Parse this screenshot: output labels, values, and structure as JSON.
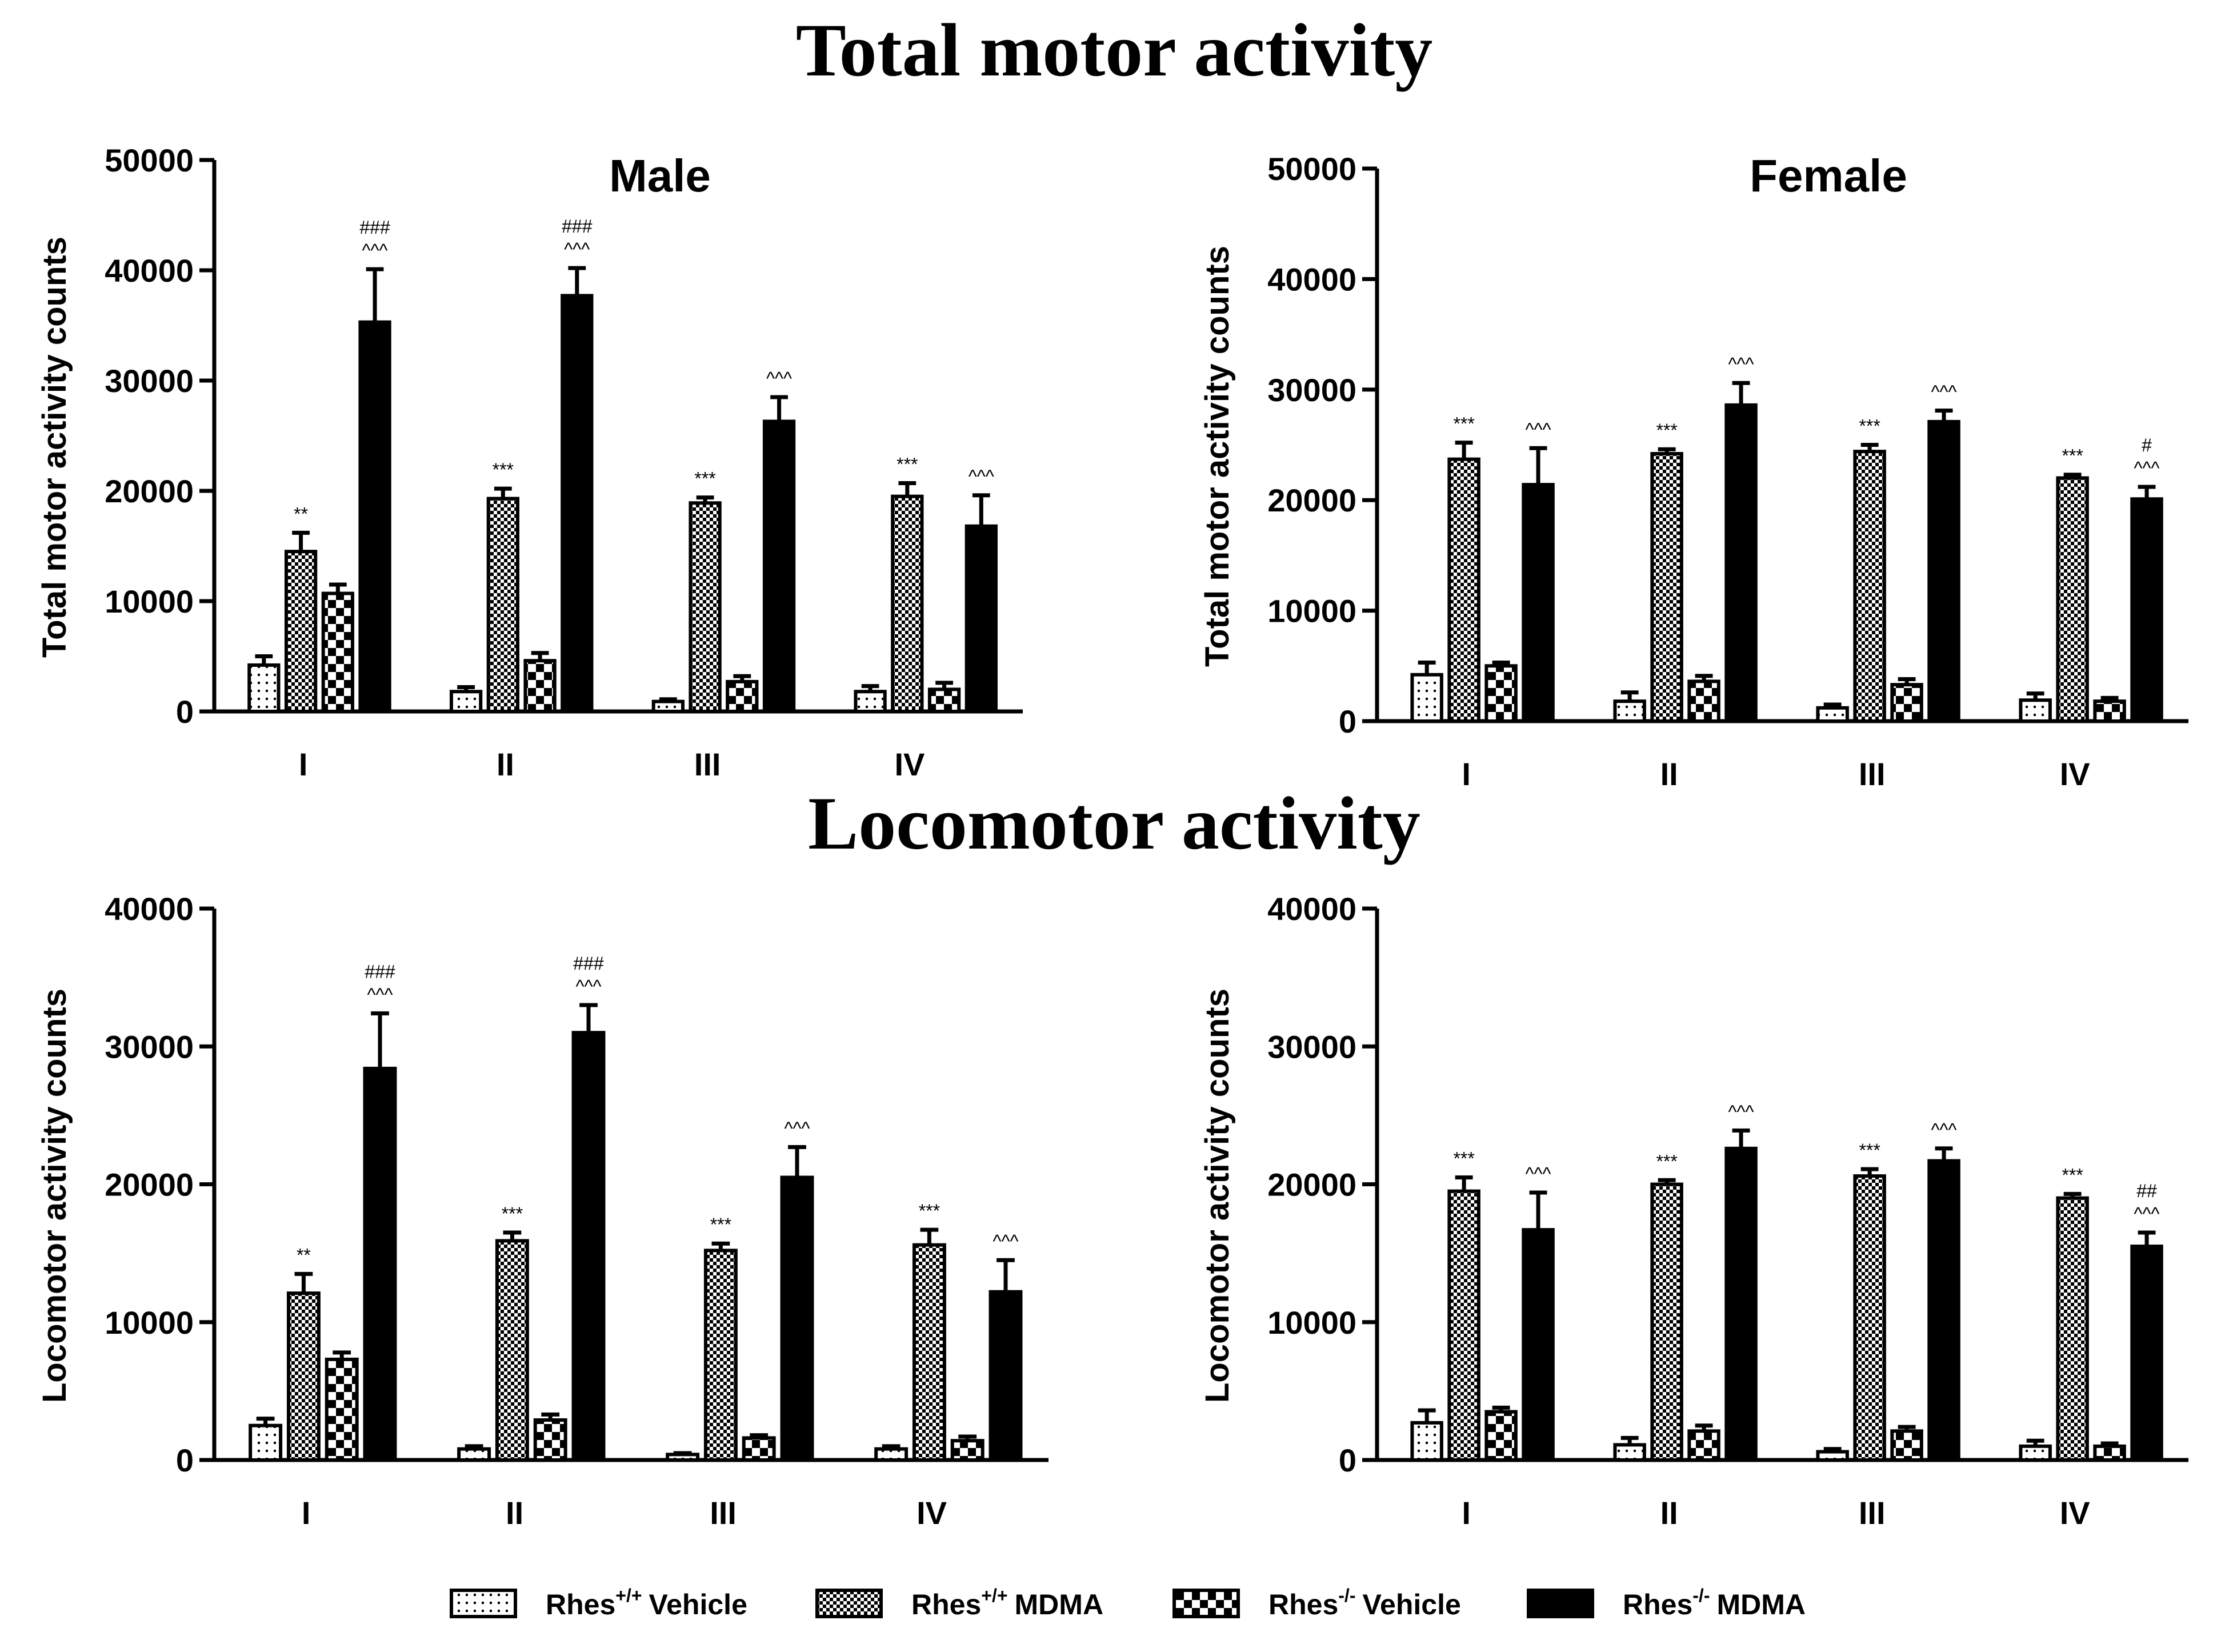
{
  "titles": {
    "total": "Total motor activity",
    "locomotor": "Locomotor activity"
  },
  "colors": {
    "ink": "#000000",
    "background": "#ffffff"
  },
  "legend": [
    {
      "base": "Rhes",
      "sup": "+/+",
      "label": "Vehicle",
      "pattern": "dots"
    },
    {
      "base": "Rhes",
      "sup": "+/+",
      "label": "MDMA",
      "pattern": "checker-fine"
    },
    {
      "base": "Rhes",
      "sup": "-/-",
      "label": "Vehicle",
      "pattern": "checker-coarse"
    },
    {
      "base": "Rhes",
      "sup": "-/-",
      "label": "MDMA",
      "pattern": "solid"
    }
  ],
  "chart_data": [
    {
      "type": "bar",
      "title": "Male",
      "ylabel": "Total motor activity counts",
      "xlabel": "",
      "ylim": [
        0,
        50000
      ],
      "yticks": [
        0,
        10000,
        20000,
        30000,
        40000,
        50000
      ],
      "categories": [
        "I",
        "II",
        "III",
        "IV"
      ],
      "series": [
        {
          "name": "Rhes+/+ Vehicle",
          "values": [
            4200,
            1800,
            900,
            1800
          ],
          "errors": [
            800,
            400,
            200,
            500
          ],
          "sig": [
            "",
            "",
            "",
            ""
          ]
        },
        {
          "name": "Rhes+/+ MDMA",
          "values": [
            14500,
            19300,
            18900,
            19500
          ],
          "errors": [
            1700,
            900,
            500,
            1200
          ],
          "sig": [
            "**",
            "***",
            "***",
            "***"
          ]
        },
        {
          "name": "Rhes-/- Vehicle",
          "values": [
            10700,
            4600,
            2700,
            2000
          ],
          "errors": [
            800,
            700,
            500,
            600
          ],
          "sig": [
            "",
            "",
            "",
            ""
          ]
        },
        {
          "name": "Rhes-/- MDMA",
          "values": [
            35300,
            37700,
            26300,
            16800
          ],
          "errors": [
            4800,
            2500,
            2200,
            2800
          ],
          "sig": [
            "^^^|###",
            "^^^|###",
            "^^^",
            "^^^"
          ]
        }
      ]
    },
    {
      "type": "bar",
      "title": "Female",
      "ylabel": "Total motor activity counts",
      "xlabel": "",
      "ylim": [
        0,
        50000
      ],
      "yticks": [
        0,
        10000,
        20000,
        30000,
        40000,
        50000
      ],
      "categories": [
        "I",
        "II",
        "III",
        "IV"
      ],
      "series": [
        {
          "name": "Rhes+/+ Vehicle",
          "values": [
            4200,
            1800,
            1200,
            1900
          ],
          "errors": [
            1100,
            800,
            300,
            600
          ],
          "sig": [
            "",
            "",
            "",
            ""
          ]
        },
        {
          "name": "Rhes+/+ MDMA",
          "values": [
            23700,
            24200,
            24400,
            22000
          ],
          "errors": [
            1500,
            400,
            600,
            300
          ],
          "sig": [
            "***",
            "***",
            "***",
            "***"
          ]
        },
        {
          "name": "Rhes-/- Vehicle",
          "values": [
            5000,
            3600,
            3300,
            1800
          ],
          "errors": [
            300,
            500,
            500,
            300
          ],
          "sig": [
            "",
            "",
            "",
            ""
          ]
        },
        {
          "name": "Rhes-/- MDMA",
          "values": [
            21400,
            28600,
            27100,
            20100
          ],
          "errors": [
            3300,
            2000,
            1000,
            1100
          ],
          "sig": [
            "^^^",
            "^^^",
            "^^^",
            "^^^|#"
          ]
        }
      ]
    },
    {
      "type": "bar",
      "title": "",
      "ylabel": "Locomotor activity counts",
      "xlabel": "",
      "ylim": [
        0,
        40000
      ],
      "yticks": [
        0,
        10000,
        20000,
        30000,
        40000
      ],
      "categories": [
        "I",
        "II",
        "III",
        "IV"
      ],
      "series": [
        {
          "name": "Rhes+/+ Vehicle",
          "values": [
            2500,
            800,
            400,
            800
          ],
          "errors": [
            500,
            200,
            100,
            200
          ],
          "sig": [
            "",
            "",
            "",
            ""
          ]
        },
        {
          "name": "Rhes+/+ MDMA",
          "values": [
            12100,
            15900,
            15200,
            15600
          ],
          "errors": [
            1400,
            600,
            500,
            1100
          ],
          "sig": [
            "**",
            "***",
            "***",
            "***"
          ]
        },
        {
          "name": "Rhes-/- Vehicle",
          "values": [
            7300,
            2900,
            1600,
            1400
          ],
          "errors": [
            500,
            400,
            200,
            300
          ],
          "sig": [
            "",
            "",
            "",
            ""
          ]
        },
        {
          "name": "Rhes-/- MDMA",
          "values": [
            28400,
            31000,
            20500,
            12200
          ],
          "errors": [
            4000,
            2000,
            2200,
            2300
          ],
          "sig": [
            "^^^|###",
            "^^^|###",
            "^^^",
            "^^^"
          ]
        }
      ]
    },
    {
      "type": "bar",
      "title": "",
      "ylabel": "Locomotor activity counts",
      "xlabel": "",
      "ylim": [
        0,
        40000
      ],
      "yticks": [
        0,
        10000,
        20000,
        30000,
        40000
      ],
      "categories": [
        "I",
        "II",
        "III",
        "IV"
      ],
      "series": [
        {
          "name": "Rhes+/+ Vehicle",
          "values": [
            2700,
            1100,
            600,
            1000
          ],
          "errors": [
            900,
            500,
            200,
            400
          ],
          "sig": [
            "",
            "",
            "",
            ""
          ]
        },
        {
          "name": "Rhes+/+ MDMA",
          "values": [
            19500,
            20000,
            20600,
            19000
          ],
          "errors": [
            1000,
            300,
            500,
            300
          ],
          "sig": [
            "***",
            "***",
            "***",
            "***"
          ]
        },
        {
          "name": "Rhes-/- Vehicle",
          "values": [
            3500,
            2100,
            2100,
            1000
          ],
          "errors": [
            300,
            400,
            300,
            200
          ],
          "sig": [
            "",
            "",
            "",
            ""
          ]
        },
        {
          "name": "Rhes-/- MDMA",
          "values": [
            16700,
            22600,
            21700,
            15500
          ],
          "errors": [
            2700,
            1300,
            900,
            1000
          ],
          "sig": [
            "^^^",
            "^^^",
            "^^^",
            "^^^|##"
          ]
        }
      ]
    }
  ]
}
